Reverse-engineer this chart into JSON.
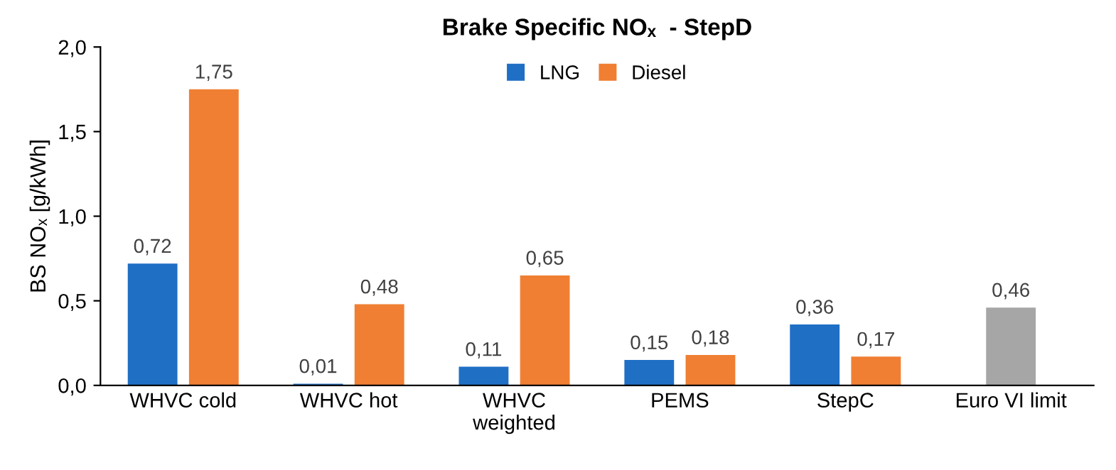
{
  "chart_data": {
    "type": "bar",
    "title": "Brake Specific NOₓ  - StepD",
    "ylabel": "BS NOₓ [g/kWh]",
    "categories": [
      "WHVC cold",
      "WHVC hot",
      "WHVC\nweighted",
      "PEMS",
      "StepC",
      "Euro VI limit"
    ],
    "series": [
      {
        "name": "LNG",
        "color": "#1f6fc5",
        "values": [
          0.72,
          0.01,
          0.11,
          0.15,
          0.36,
          null
        ],
        "value_labels": [
          "0,72",
          "0,01",
          "0,11",
          "0,15",
          "0,36",
          null
        ]
      },
      {
        "name": "Diesel",
        "color": "#f07f33",
        "values": [
          1.75,
          0.48,
          0.65,
          0.18,
          0.17,
          null
        ],
        "value_labels": [
          "1,75",
          "0,48",
          "0,65",
          "0,18",
          "0,17",
          null
        ]
      },
      {
        "color": "#a6a6a6",
        "values": [
          null,
          null,
          null,
          null,
          null,
          0.46
        ],
        "value_labels": [
          null,
          null,
          null,
          null,
          null,
          "0,46"
        ]
      }
    ],
    "ylim": [
      0,
      2.0
    ],
    "yticks": [
      {
        "value": 0,
        "label": "0,0"
      },
      {
        "value": 0.5,
        "label": "0,5"
      },
      {
        "value": 1.0,
        "label": "1,0"
      },
      {
        "value": 1.5,
        "label": "1,5"
      },
      {
        "value": 2.0,
        "label": "2,0"
      }
    ],
    "legend": "top",
    "grid": false
  }
}
